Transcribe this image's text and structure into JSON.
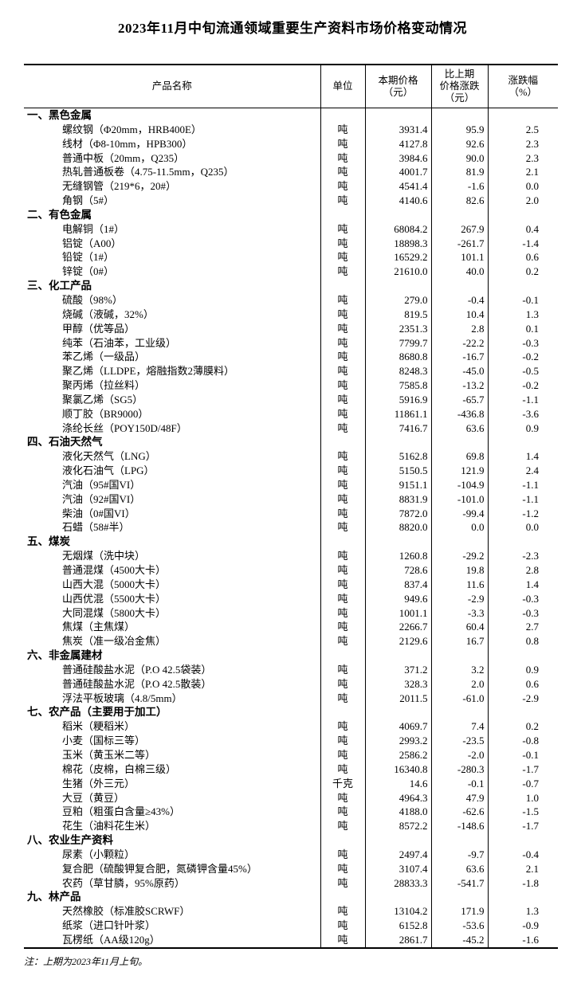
{
  "title": "2023年11月中旬流通领域重要生产资料市场价格变动情况",
  "note": "注：上期为2023年11月上旬。",
  "table": {
    "headers": {
      "product": "产品名称",
      "unit": "单位",
      "price": "本期价格\n（元）",
      "change": "比上期\n价格涨跌\n（元）",
      "pct": "涨跌幅\n（%）"
    },
    "sections": [
      {
        "name": "一、黑色金属",
        "rows": [
          {
            "product": "螺纹钢（Φ20mm，HRB400E）",
            "unit": "吨",
            "price": "3931.4",
            "change": "95.9",
            "pct": "2.5"
          },
          {
            "product": "线材（Φ8-10mm，HPB300）",
            "unit": "吨",
            "price": "4127.8",
            "change": "92.6",
            "pct": "2.3"
          },
          {
            "product": "普通中板（20mm，Q235）",
            "unit": "吨",
            "price": "3984.6",
            "change": "90.0",
            "pct": "2.3"
          },
          {
            "product": "热轧普通板卷（4.75-11.5mm，Q235）",
            "unit": "吨",
            "price": "4001.7",
            "change": "81.9",
            "pct": "2.1"
          },
          {
            "product": "无缝钢管（219*6，20#）",
            "unit": "吨",
            "price": "4541.4",
            "change": "-1.6",
            "pct": "0.0"
          },
          {
            "product": "角钢（5#）",
            "unit": "吨",
            "price": "4140.6",
            "change": "82.6",
            "pct": "2.0"
          }
        ]
      },
      {
        "name": "二、有色金属",
        "rows": [
          {
            "product": "电解铜（1#）",
            "unit": "吨",
            "price": "68084.2",
            "change": "267.9",
            "pct": "0.4"
          },
          {
            "product": "铝锭（A00）",
            "unit": "吨",
            "price": "18898.3",
            "change": "-261.7",
            "pct": "-1.4"
          },
          {
            "product": "铅锭（1#）",
            "unit": "吨",
            "price": "16529.2",
            "change": "101.1",
            "pct": "0.6"
          },
          {
            "product": "锌锭（0#）",
            "unit": "吨",
            "price": "21610.0",
            "change": "40.0",
            "pct": "0.2"
          }
        ]
      },
      {
        "name": "三、化工产品",
        "rows": [
          {
            "product": "硫酸（98%）",
            "unit": "吨",
            "price": "279.0",
            "change": "-0.4",
            "pct": "-0.1"
          },
          {
            "product": "烧碱（液碱，32%）",
            "unit": "吨",
            "price": "819.5",
            "change": "10.4",
            "pct": "1.3"
          },
          {
            "product": "甲醇（优等品）",
            "unit": "吨",
            "price": "2351.3",
            "change": "2.8",
            "pct": "0.1"
          },
          {
            "product": "纯苯（石油苯，工业级）",
            "unit": "吨",
            "price": "7799.7",
            "change": "-22.2",
            "pct": "-0.3"
          },
          {
            "product": "苯乙烯（一级品）",
            "unit": "吨",
            "price": "8680.8",
            "change": "-16.7",
            "pct": "-0.2"
          },
          {
            "product": "聚乙烯（LLDPE，熔融指数2薄膜料）",
            "unit": "吨",
            "price": "8248.3",
            "change": "-45.0",
            "pct": "-0.5"
          },
          {
            "product": "聚丙烯（拉丝料）",
            "unit": "吨",
            "price": "7585.8",
            "change": "-13.2",
            "pct": "-0.2"
          },
          {
            "product": "聚氯乙烯（SG5）",
            "unit": "吨",
            "price": "5916.9",
            "change": "-65.7",
            "pct": "-1.1"
          },
          {
            "product": "顺丁胶（BR9000）",
            "unit": "吨",
            "price": "11861.1",
            "change": "-436.8",
            "pct": "-3.6"
          },
          {
            "product": "涤纶长丝（POY150D/48F）",
            "unit": "吨",
            "price": "7416.7",
            "change": "63.6",
            "pct": "0.9"
          }
        ]
      },
      {
        "name": "四、石油天然气",
        "rows": [
          {
            "product": "液化天然气（LNG）",
            "unit": "吨",
            "price": "5162.8",
            "change": "69.8",
            "pct": "1.4"
          },
          {
            "product": "液化石油气（LPG）",
            "unit": "吨",
            "price": "5150.5",
            "change": "121.9",
            "pct": "2.4"
          },
          {
            "product": "汽油（95#国VI）",
            "unit": "吨",
            "price": "9151.1",
            "change": "-104.9",
            "pct": "-1.1"
          },
          {
            "product": "汽油（92#国VI）",
            "unit": "吨",
            "price": "8831.9",
            "change": "-101.0",
            "pct": "-1.1"
          },
          {
            "product": "柴油（0#国VI）",
            "unit": "吨",
            "price": "7872.0",
            "change": "-99.4",
            "pct": "-1.2"
          },
          {
            "product": "石蜡（58#半）",
            "unit": "吨",
            "price": "8820.0",
            "change": "0.0",
            "pct": "0.0"
          }
        ]
      },
      {
        "name": "五、煤炭",
        "rows": [
          {
            "product": "无烟煤（洗中块）",
            "unit": "吨",
            "price": "1260.8",
            "change": "-29.2",
            "pct": "-2.3"
          },
          {
            "product": "普通混煤（4500大卡）",
            "unit": "吨",
            "price": "728.6",
            "change": "19.8",
            "pct": "2.8"
          },
          {
            "product": "山西大混（5000大卡）",
            "unit": "吨",
            "price": "837.4",
            "change": "11.6",
            "pct": "1.4"
          },
          {
            "product": "山西优混（5500大卡）",
            "unit": "吨",
            "price": "949.6",
            "change": "-2.9",
            "pct": "-0.3"
          },
          {
            "product": "大同混煤（5800大卡）",
            "unit": "吨",
            "price": "1001.1",
            "change": "-3.3",
            "pct": "-0.3"
          },
          {
            "product": "焦煤（主焦煤）",
            "unit": "吨",
            "price": "2266.7",
            "change": "60.4",
            "pct": "2.7"
          },
          {
            "product": "焦炭（准一级冶金焦）",
            "unit": "吨",
            "price": "2129.6",
            "change": "16.7",
            "pct": "0.8"
          }
        ]
      },
      {
        "name": "六、非金属建材",
        "rows": [
          {
            "product": "普通硅酸盐水泥（P.O 42.5袋装）",
            "unit": "吨",
            "price": "371.2",
            "change": "3.2",
            "pct": "0.9"
          },
          {
            "product": "普通硅酸盐水泥（P.O 42.5散装）",
            "unit": "吨",
            "price": "328.3",
            "change": "2.0",
            "pct": "0.6"
          },
          {
            "product": "浮法平板玻璃（4.8/5mm）",
            "unit": "吨",
            "price": "2011.5",
            "change": "-61.0",
            "pct": "-2.9"
          }
        ]
      },
      {
        "name": "七、农产品（主要用于加工）",
        "rows": [
          {
            "product": "稻米（粳稻米）",
            "unit": "吨",
            "price": "4069.7",
            "change": "7.4",
            "pct": "0.2"
          },
          {
            "product": "小麦（国标三等）",
            "unit": "吨",
            "price": "2993.2",
            "change": "-23.5",
            "pct": "-0.8"
          },
          {
            "product": "玉米（黄玉米二等）",
            "unit": "吨",
            "price": "2586.2",
            "change": "-2.0",
            "pct": "-0.1"
          },
          {
            "product": "棉花（皮棉，白棉三级）",
            "unit": "吨",
            "price": "16340.8",
            "change": "-280.3",
            "pct": "-1.7"
          },
          {
            "product": "生猪（外三元）",
            "unit": "千克",
            "price": "14.6",
            "change": "-0.1",
            "pct": "-0.7"
          },
          {
            "product": "大豆（黄豆）",
            "unit": "吨",
            "price": "4964.3",
            "change": "47.9",
            "pct": "1.0"
          },
          {
            "product": "豆粕（粗蛋白含量≥43%）",
            "unit": "吨",
            "price": "4188.0",
            "change": "-62.6",
            "pct": "-1.5"
          },
          {
            "product": "花生（油料花生米）",
            "unit": "吨",
            "price": "8572.2",
            "change": "-148.6",
            "pct": "-1.7"
          }
        ]
      },
      {
        "name": "八、农业生产资料",
        "rows": [
          {
            "product": "尿素（小颗粒）",
            "unit": "吨",
            "price": "2497.4",
            "change": "-9.7",
            "pct": "-0.4"
          },
          {
            "product": "复合肥（硫酸钾复合肥，氮磷钾含量45%）",
            "unit": "吨",
            "price": "3107.4",
            "change": "63.6",
            "pct": "2.1"
          },
          {
            "product": "农药（草甘膦，95%原药）",
            "unit": "吨",
            "price": "28833.3",
            "change": "-541.7",
            "pct": "-1.8"
          }
        ]
      },
      {
        "name": "九、林产品",
        "rows": [
          {
            "product": "天然橡胶（标准胶SCRWF）",
            "unit": "吨",
            "price": "13104.2",
            "change": "171.9",
            "pct": "1.3"
          },
          {
            "product": "纸浆（进口针叶浆）",
            "unit": "吨",
            "price": "6152.8",
            "change": "-53.6",
            "pct": "-0.9"
          },
          {
            "product": "瓦楞纸（AA级120g）",
            "unit": "吨",
            "price": "2861.7",
            "change": "-45.2",
            "pct": "-1.6"
          }
        ]
      }
    ]
  }
}
